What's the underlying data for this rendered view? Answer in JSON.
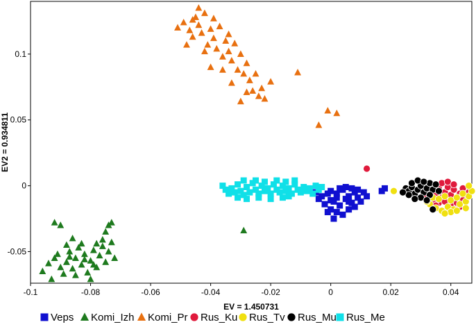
{
  "chart_data": {
    "type": "scatter",
    "xlabel": "EV = 1.450731",
    "ylabel": "EV2 = 0.934811",
    "xlim": [
      -0.1,
      0.047
    ],
    "ylim": [
      -0.074,
      0.14
    ],
    "x_ticks": [
      "-0.1",
      "-0.08",
      "-0.06",
      "-0.04",
      "-0.02",
      "0",
      "0.02",
      "0.04"
    ],
    "x_tick_values": [
      -0.1,
      -0.08,
      -0.06,
      -0.04,
      -0.02,
      0,
      0.02,
      0.04
    ],
    "y_ticks": [
      "-0.05",
      "0",
      "0.05",
      "0.1"
    ],
    "y_tick_values": [
      -0.05,
      0,
      0.05,
      0.1
    ],
    "legend_position": "bottom",
    "grid": false,
    "series": [
      {
        "name": "Veps",
        "marker": "square",
        "color": "#1010d0",
        "points": [
          [
            0.0,
            -0.004
          ],
          [
            0.002,
            -0.006
          ],
          [
            0.004,
            -0.003
          ],
          [
            0.006,
            -0.008
          ],
          [
            0.008,
            -0.005
          ],
          [
            0.001,
            -0.012
          ],
          [
            0.003,
            -0.015
          ],
          [
            0.005,
            -0.01
          ],
          [
            0.007,
            -0.013
          ],
          [
            0.009,
            -0.009
          ],
          [
            0.0,
            -0.018
          ],
          [
            0.002,
            -0.02
          ],
          [
            -0.002,
            -0.014
          ],
          [
            -0.003,
            -0.008
          ],
          [
            0.006,
            -0.018
          ],
          [
            0.004,
            -0.022
          ],
          [
            0.001,
            -0.025
          ],
          [
            -0.001,
            -0.02
          ],
          [
            0.008,
            -0.016
          ],
          [
            0.003,
            -0.002
          ],
          [
            0.005,
            -0.001
          ],
          [
            0.007,
            -0.002
          ],
          [
            0.009,
            -0.003
          ],
          [
            0.011,
            -0.005
          ],
          [
            0.012,
            -0.008
          ],
          [
            0.01,
            -0.012
          ],
          [
            -0.004,
            -0.01
          ],
          [
            -0.005,
            -0.005
          ],
          [
            0.002,
            -0.009
          ],
          [
            0.006,
            -0.012
          ],
          [
            0.018,
            -0.002
          ],
          [
            0.017,
            -0.004
          ],
          [
            0.0,
            -0.011
          ],
          [
            -0.001,
            -0.006
          ]
        ]
      },
      {
        "name": "Komi_Izh",
        "marker": "triangle",
        "color": "#1e7a1e",
        "points": [
          [
            -0.096,
            -0.065
          ],
          [
            -0.093,
            -0.071
          ],
          [
            -0.094,
            -0.059
          ],
          [
            -0.092,
            -0.055
          ],
          [
            -0.09,
            -0.062
          ],
          [
            -0.091,
            -0.052
          ],
          [
            -0.089,
            -0.067
          ],
          [
            -0.088,
            -0.058
          ],
          [
            -0.087,
            -0.05
          ],
          [
            -0.086,
            -0.063
          ],
          [
            -0.085,
            -0.055
          ],
          [
            -0.084,
            -0.047
          ],
          [
            -0.083,
            -0.06
          ],
          [
            -0.082,
            -0.052
          ],
          [
            -0.081,
            -0.066
          ],
          [
            -0.08,
            -0.057
          ],
          [
            -0.079,
            -0.049
          ],
          [
            -0.078,
            -0.062
          ],
          [
            -0.077,
            -0.053
          ],
          [
            -0.076,
            -0.046
          ],
          [
            -0.075,
            -0.058
          ],
          [
            -0.074,
            -0.05
          ],
          [
            -0.073,
            -0.043
          ],
          [
            -0.072,
            -0.055
          ],
          [
            -0.074,
            -0.03
          ],
          [
            -0.073,
            -0.028
          ],
          [
            -0.075,
            -0.035
          ],
          [
            -0.092,
            -0.028
          ],
          [
            -0.09,
            -0.03
          ],
          [
            -0.086,
            -0.04
          ],
          [
            -0.083,
            -0.044
          ],
          [
            -0.08,
            -0.071
          ],
          [
            -0.085,
            -0.068
          ],
          [
            -0.078,
            -0.044
          ],
          [
            -0.076,
            -0.041
          ],
          [
            -0.088,
            -0.045
          ],
          [
            -0.082,
            -0.056
          ],
          [
            -0.079,
            -0.06
          ],
          [
            -0.087,
            -0.054
          ],
          [
            -0.029,
            -0.034
          ]
        ]
      },
      {
        "name": "Komi_Pr",
        "marker": "triangle",
        "color": "#e87010",
        "points": [
          [
            -0.051,
            0.12
          ],
          [
            -0.049,
            0.124
          ],
          [
            -0.047,
            0.118
          ],
          [
            -0.046,
            0.113
          ],
          [
            -0.045,
            0.128
          ],
          [
            -0.044,
            0.122
          ],
          [
            -0.043,
            0.116
          ],
          [
            -0.042,
            0.131
          ],
          [
            -0.041,
            0.107
          ],
          [
            -0.04,
            0.119
          ],
          [
            -0.039,
            0.112
          ],
          [
            -0.038,
            0.104
          ],
          [
            -0.037,
            0.121
          ],
          [
            -0.036,
            0.098
          ],
          [
            -0.035,
            0.11
          ],
          [
            -0.034,
            0.102
          ],
          [
            -0.033,
            0.095
          ],
          [
            -0.032,
            0.108
          ],
          [
            -0.031,
            0.088
          ],
          [
            -0.03,
            0.1
          ],
          [
            -0.029,
            0.085
          ],
          [
            -0.028,
            0.093
          ],
          [
            -0.027,
            0.08
          ],
          [
            -0.026,
            0.072
          ],
          [
            -0.025,
            0.085
          ],
          [
            -0.024,
            0.068
          ],
          [
            -0.023,
            0.074
          ],
          [
            -0.022,
            0.066
          ],
          [
            -0.02,
            0.079
          ],
          [
            -0.044,
            0.135
          ],
          [
            -0.039,
            0.127
          ],
          [
            -0.036,
            0.088
          ],
          [
            -0.04,
            0.09
          ],
          [
            -0.034,
            0.115
          ],
          [
            -0.048,
            0.107
          ],
          [
            -0.042,
            0.102
          ],
          [
            -0.046,
            0.126
          ],
          [
            -0.033,
            0.078
          ],
          [
            -0.03,
            0.064
          ],
          [
            -0.011,
            0.086
          ],
          [
            -0.001,
            0.057
          ],
          [
            0.002,
            0.055
          ],
          [
            -0.004,
            0.046
          ],
          [
            -0.028,
            0.071
          ]
        ]
      },
      {
        "name": "Rus_Ku",
        "marker": "circle",
        "color": "#e01a3c",
        "points": [
          [
            0.012,
            0.013
          ],
          [
            0.033,
            -0.004
          ],
          [
            0.035,
            -0.006
          ],
          [
            0.036,
            -0.002
          ],
          [
            0.037,
            -0.009
          ],
          [
            0.038,
            -0.005
          ],
          [
            0.039,
            -0.001
          ],
          [
            0.04,
            -0.007
          ],
          [
            0.041,
            -0.003
          ],
          [
            0.042,
            -0.01
          ],
          [
            0.043,
            -0.006
          ],
          [
            0.044,
            -0.002
          ],
          [
            0.045,
            -0.008
          ],
          [
            0.034,
            -0.011
          ],
          [
            0.036,
            -0.013
          ],
          [
            0.038,
            -0.012
          ],
          [
            0.04,
            -0.014
          ],
          [
            0.042,
            -0.013
          ],
          [
            0.044,
            -0.011
          ],
          [
            0.037,
            0.002
          ],
          [
            0.039,
            0.003
          ],
          [
            0.041,
            0.001
          ],
          [
            0.032,
            -0.008
          ],
          [
            0.035,
            -0.015
          ],
          [
            0.046,
            -0.005
          ],
          [
            0.043,
            -0.016
          ]
        ]
      },
      {
        "name": "Rus_Tv",
        "marker": "circle",
        "color": "#f0e010",
        "points": [
          [
            0.021,
            -0.004
          ],
          [
            0.033,
            -0.014
          ],
          [
            0.035,
            -0.017
          ],
          [
            0.037,
            -0.019
          ],
          [
            0.039,
            -0.016
          ],
          [
            0.041,
            -0.018
          ],
          [
            0.043,
            -0.014
          ],
          [
            0.045,
            -0.012
          ],
          [
            0.046,
            -0.008
          ],
          [
            0.047,
            -0.004
          ],
          [
            0.046,
            0.0
          ],
          [
            0.034,
            -0.009
          ],
          [
            0.036,
            -0.01
          ],
          [
            0.038,
            -0.008
          ],
          [
            0.04,
            -0.011
          ],
          [
            0.042,
            -0.009
          ],
          [
            0.044,
            -0.006
          ],
          [
            0.04,
            -0.02
          ],
          [
            0.042,
            -0.019
          ],
          [
            0.038,
            -0.021
          ],
          [
            0.045,
            -0.017
          ],
          [
            0.032,
            -0.012
          ]
        ]
      },
      {
        "name": "Rus_Mu",
        "marker": "circle",
        "color": "#000000",
        "points": [
          [
            0.025,
            -0.002
          ],
          [
            0.026,
            -0.004
          ],
          [
            0.027,
            -0.001
          ],
          [
            0.028,
            -0.006
          ],
          [
            0.029,
            -0.003
          ],
          [
            0.03,
            0.0
          ],
          [
            0.031,
            -0.005
          ],
          [
            0.032,
            -0.002
          ],
          [
            0.033,
            0.002
          ],
          [
            0.034,
            -0.003
          ],
          [
            0.027,
            0.002
          ],
          [
            0.029,
            0.004
          ],
          [
            0.031,
            0.003
          ],
          [
            0.033,
            -0.007
          ],
          [
            0.03,
            -0.009
          ],
          [
            0.028,
            -0.01
          ],
          [
            0.032,
            -0.011
          ],
          [
            0.035,
            0.001
          ],
          [
            0.026,
            -0.007
          ],
          [
            0.034,
            -0.018
          ],
          [
            0.024,
            -0.005
          ],
          [
            0.036,
            -0.004
          ]
        ]
      },
      {
        "name": "Rus_Me",
        "marker": "square",
        "color": "#10e0e8",
        "points": [
          [
            -0.036,
            0.0
          ],
          [
            -0.035,
            -0.003
          ],
          [
            -0.034,
            -0.006
          ],
          [
            -0.033,
            -0.002
          ],
          [
            -0.032,
            -0.005
          ],
          [
            -0.031,
            0.001
          ],
          [
            -0.03,
            -0.004
          ],
          [
            -0.029,
            -0.007
          ],
          [
            -0.028,
            -0.001
          ],
          [
            -0.027,
            -0.005
          ],
          [
            -0.026,
            0.002
          ],
          [
            -0.025,
            -0.003
          ],
          [
            -0.024,
            -0.006
          ],
          [
            -0.023,
            0.0
          ],
          [
            -0.022,
            -0.004
          ],
          [
            -0.021,
            -0.002
          ],
          [
            -0.02,
            -0.006
          ],
          [
            -0.019,
            0.001
          ],
          [
            -0.018,
            -0.003
          ],
          [
            -0.017,
            -0.005
          ],
          [
            -0.016,
            0.0
          ],
          [
            -0.015,
            -0.004
          ],
          [
            -0.014,
            -0.002
          ],
          [
            -0.013,
            -0.006
          ],
          [
            -0.012,
            0.001
          ],
          [
            -0.011,
            -0.003
          ],
          [
            -0.01,
            -0.005
          ],
          [
            -0.009,
            -0.001
          ],
          [
            -0.008,
            -0.004
          ],
          [
            -0.007,
            -0.002
          ],
          [
            -0.006,
            -0.006
          ],
          [
            -0.005,
            0.0
          ],
          [
            -0.004,
            -0.003
          ],
          [
            -0.003,
            -0.001
          ],
          [
            -0.025,
            0.004
          ],
          [
            -0.022,
            0.003
          ],
          [
            -0.018,
            0.004
          ],
          [
            -0.015,
            0.003
          ],
          [
            -0.012,
            0.004
          ],
          [
            -0.028,
            -0.01
          ],
          [
            -0.024,
            -0.009
          ],
          [
            -0.02,
            -0.01
          ],
          [
            -0.016,
            -0.009
          ],
          [
            -0.031,
            -0.009
          ],
          [
            -0.014,
            -0.008
          ],
          [
            -0.029,
            0.004
          ]
        ]
      }
    ]
  }
}
